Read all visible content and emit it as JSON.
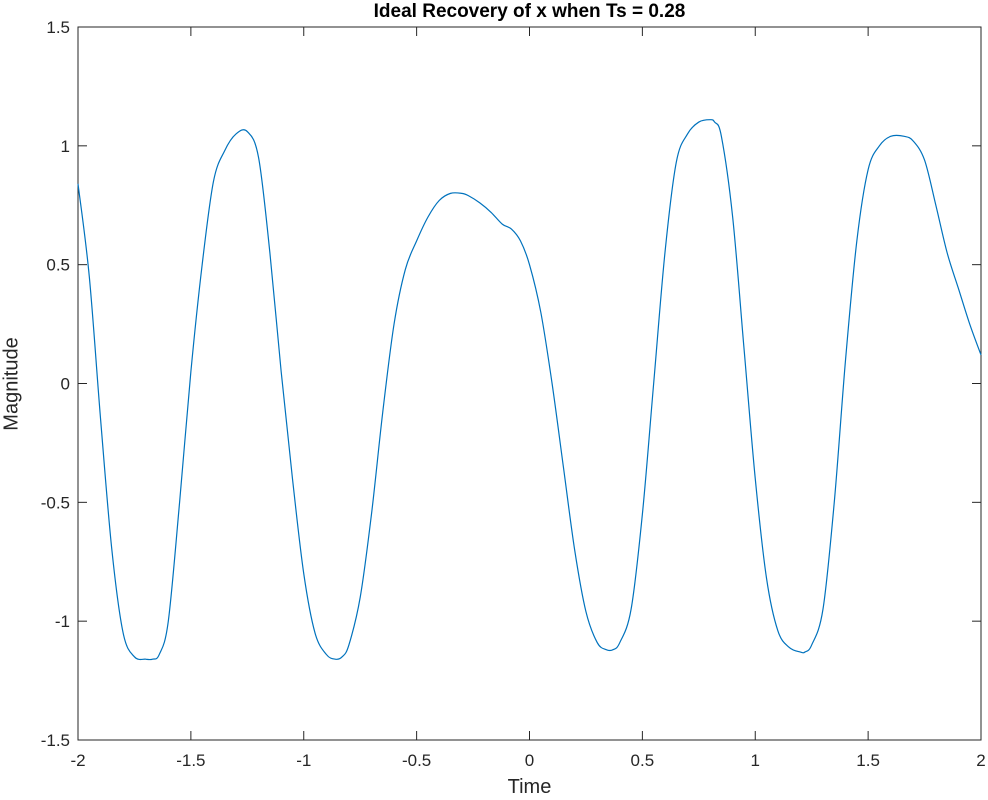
{
  "chart_data": {
    "type": "line",
    "title": "Ideal Recovery of x when Ts = 0.28",
    "xlabel": "Time",
    "ylabel": "Magnitude",
    "xlim": [
      -2,
      2
    ],
    "ylim": [
      -1.5,
      1.5
    ],
    "xticks": [
      "-2",
      "-1.5",
      "-1",
      "-0.5",
      "0",
      "0.5",
      "1",
      "1.5",
      "2"
    ],
    "yticks": [
      "-1.5",
      "-1",
      "-0.5",
      "0",
      "0.5",
      "1",
      "1.5"
    ],
    "grid": false,
    "series": [
      {
        "color": "#0072bd",
        "x": [
          -2.0,
          -1.95,
          -1.9,
          -1.85,
          -1.8,
          -1.75,
          -1.7,
          -1.67,
          -1.64,
          -1.6,
          -1.55,
          -1.5,
          -1.45,
          -1.4,
          -1.35,
          -1.3,
          -1.25,
          -1.2,
          -1.15,
          -1.1,
          -1.05,
          -1.0,
          -0.95,
          -0.9,
          -0.86,
          -0.83,
          -0.8,
          -0.75,
          -0.7,
          -0.65,
          -0.6,
          -0.55,
          -0.5,
          -0.45,
          -0.4,
          -0.35,
          -0.3,
          -0.27,
          -0.22,
          -0.17,
          -0.12,
          -0.08,
          -0.04,
          0.0,
          0.05,
          0.1,
          0.15,
          0.2,
          0.25,
          0.3,
          0.34,
          0.37,
          0.4,
          0.45,
          0.5,
          0.55,
          0.6,
          0.65,
          0.7,
          0.75,
          0.8,
          0.82,
          0.85,
          0.9,
          0.95,
          1.0,
          1.05,
          1.1,
          1.15,
          1.2,
          1.22,
          1.25,
          1.3,
          1.35,
          1.4,
          1.45,
          1.5,
          1.55,
          1.6,
          1.66,
          1.7,
          1.75,
          1.8,
          1.85,
          1.9,
          1.95,
          2.0
        ],
        "y": [
          0.84,
          0.45,
          -0.15,
          -0.7,
          -1.05,
          -1.15,
          -1.16,
          -1.16,
          -1.14,
          -1.0,
          -0.5,
          0.05,
          0.5,
          0.85,
          0.98,
          1.05,
          1.06,
          0.95,
          0.55,
          0.05,
          -0.4,
          -0.8,
          -1.05,
          -1.14,
          -1.16,
          -1.15,
          -1.1,
          -0.9,
          -0.55,
          -0.12,
          0.25,
          0.48,
          0.6,
          0.7,
          0.77,
          0.8,
          0.8,
          0.79,
          0.76,
          0.72,
          0.67,
          0.65,
          0.6,
          0.5,
          0.3,
          0.0,
          -0.35,
          -0.7,
          -0.96,
          -1.09,
          -1.12,
          -1.12,
          -1.09,
          -0.95,
          -0.55,
          0.0,
          0.55,
          0.93,
          1.05,
          1.1,
          1.11,
          1.1,
          1.04,
          0.7,
          0.15,
          -0.4,
          -0.82,
          -1.04,
          -1.11,
          -1.13,
          -1.13,
          -1.1,
          -0.95,
          -0.5,
          0.1,
          0.6,
          0.9,
          1.0,
          1.04,
          1.04,
          1.02,
          0.94,
          0.75,
          0.55,
          0.4,
          0.25,
          0.12
        ]
      }
    ]
  }
}
